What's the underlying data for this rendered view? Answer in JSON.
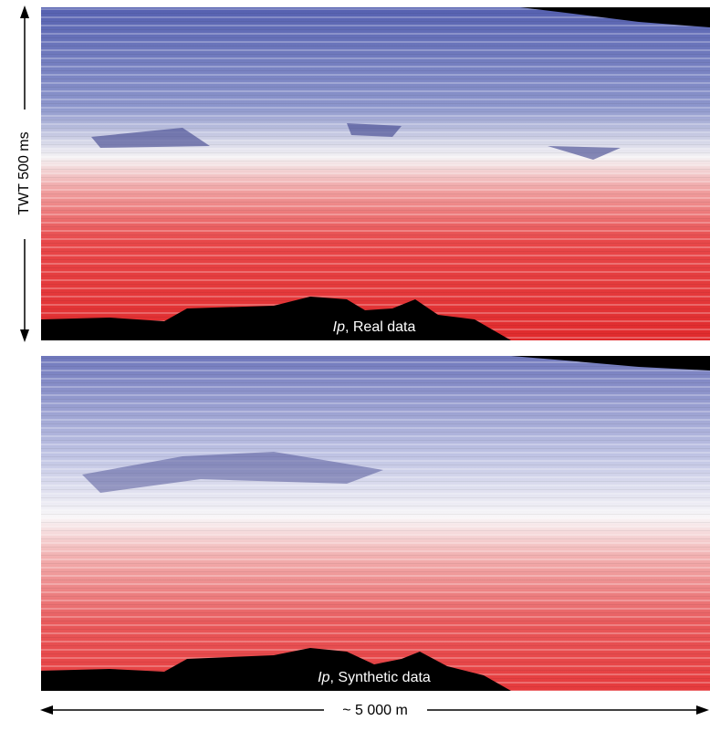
{
  "panels": [
    {
      "label_symbol": "Ip",
      "label_text": ", Real data"
    },
    {
      "label_symbol": "Ip",
      "label_text": ", Synthetic data"
    }
  ],
  "scale": {
    "vertical": "TWT 500 ms",
    "horizontal": "~ 5 000 m"
  }
}
